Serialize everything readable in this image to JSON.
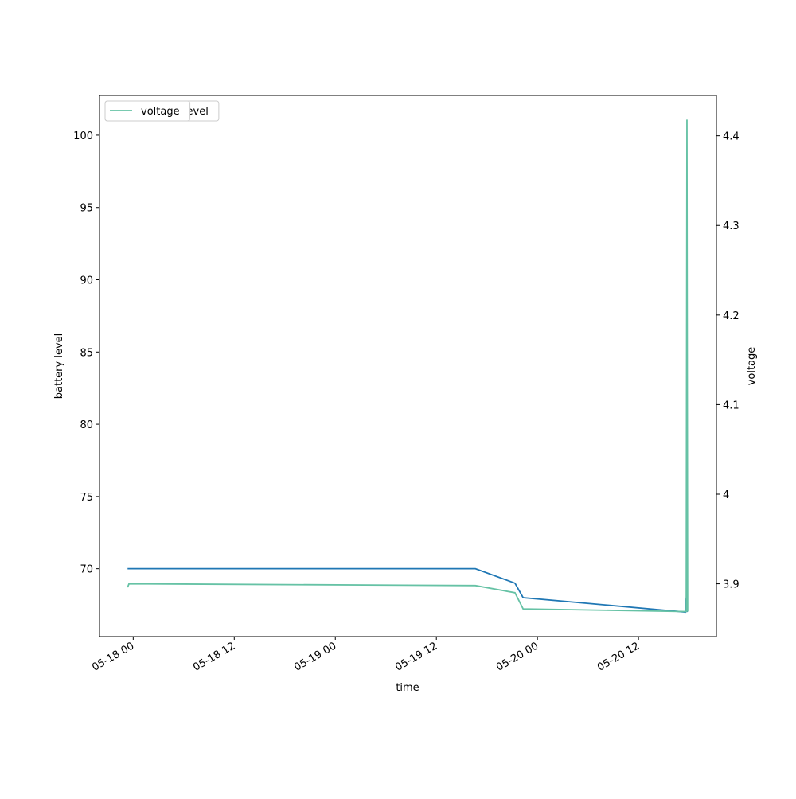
{
  "chart_data": {
    "type": "line",
    "xlabel": "time",
    "ylabel": "battery level",
    "y2label": "voltage",
    "xlim": [
      "05-17 20:00",
      "05-20 21:15"
    ],
    "xticks": [
      "05-18 00",
      "05-18 12",
      "05-19 00",
      "05-19 12",
      "05-20 00",
      "05-20 12"
    ],
    "ylim": [
      65.3,
      102.75
    ],
    "yticks": [
      70,
      75,
      80,
      85,
      90,
      95,
      100
    ],
    "y2lim": [
      3.841,
      4.445
    ],
    "y2ticks": [
      3.9,
      4.0,
      4.1,
      4.2,
      4.3,
      4.4
    ],
    "legend": "upper left",
    "series": [
      {
        "name": "battery_level",
        "color": "#1f77b4",
        "x": [
          "05-17 23:20",
          "05-19 16:38",
          "05-19 21:20",
          "05-19 22:18",
          "05-20 17:34",
          "05-20 17:40",
          "05-20 17:45"
        ],
        "values": [
          70,
          70,
          69,
          68,
          67,
          68,
          67
        ]
      },
      {
        "name": "voltage",
        "color": "#66c2a5",
        "axis": "y2",
        "x": [
          "05-17 23:20",
          "05-17 23:30",
          "05-19 16:38",
          "05-19 21:20",
          "05-19 22:18",
          "05-20 17:34",
          "05-20 17:40",
          "05-20 17:45",
          "05-20 17:50"
        ],
        "values": [
          3.896,
          3.9,
          3.898,
          3.89,
          3.872,
          3.869,
          3.869,
          4.418,
          3.869
        ]
      }
    ]
  }
}
